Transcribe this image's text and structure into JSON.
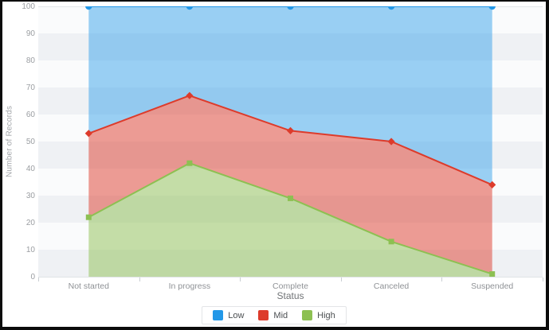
{
  "y_axis": {
    "title": "Number of Records",
    "tick_labels": [
      "100",
      "90",
      "80",
      "70",
      "60",
      "50",
      "40",
      "30",
      "20",
      "10",
      "0"
    ]
  },
  "x_axis": {
    "title": "Status"
  },
  "chart_data": {
    "type": "area",
    "title": "",
    "xlabel": "Status",
    "ylabel": "Number of Records",
    "ylim": [
      0,
      100
    ],
    "grid": "horizontal striped bands every 10 units",
    "legend_position": "bottom",
    "categories": [
      "Not started",
      "In progress",
      "Complete",
      "Canceled",
      "Suspended"
    ],
    "series": [
      {
        "name": "Low",
        "marker": "circle",
        "color": "#2398e8",
        "fill": "rgba(35,152,232,0.45)",
        "values": [
          100,
          100,
          100,
          100,
          100
        ]
      },
      {
        "name": "Mid",
        "marker": "diamond",
        "color": "#dd3b2b",
        "fill": "rgba(221,59,43,0.5)",
        "values": [
          53,
          67,
          54,
          50,
          34
        ]
      },
      {
        "name": "High",
        "marker": "square",
        "color": "#8dc052",
        "fill": "rgba(141,192,82,0.5)",
        "values": [
          22,
          42,
          29,
          13,
          1
        ]
      }
    ],
    "render_note": "layered fills: blue band between Low(100) line and Mid line, red band between Mid and High lines, green band between High line and baseline 0"
  }
}
